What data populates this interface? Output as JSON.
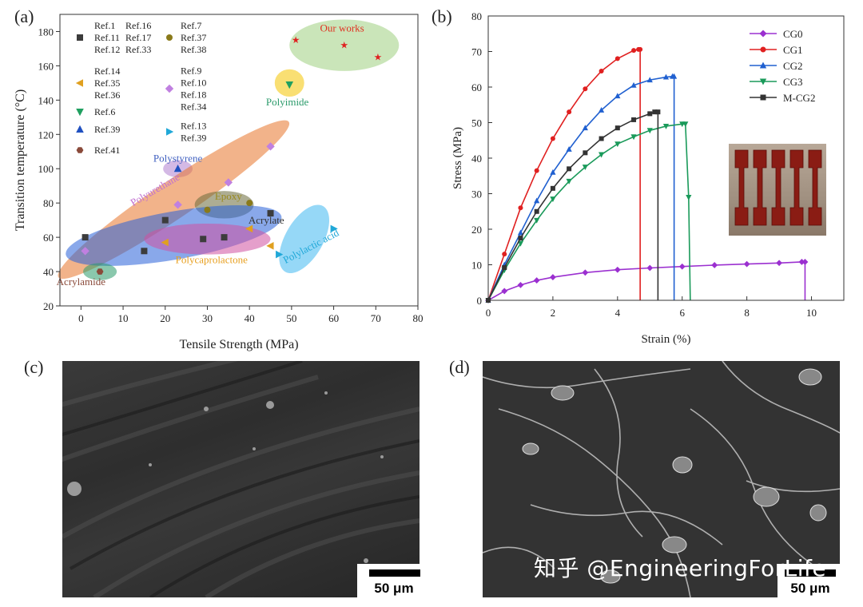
{
  "panels": {
    "a": "(a)",
    "b": "(b)",
    "c": "(c)",
    "d": "(d)"
  },
  "scale_bars": {
    "c": "50 μm",
    "d": "50 μm"
  },
  "watermark": "知乎 @EngineeringForLife",
  "chart_data": [
    {
      "type": "scatter",
      "xlabel": "Tensile Strength (MPa)",
      "ylabel": "Transition temperature (°C)",
      "xlim": [
        -5,
        80
      ],
      "ylim": [
        20,
        190
      ],
      "xticks": [
        0,
        10,
        20,
        30,
        40,
        50,
        60,
        70,
        80
      ],
      "yticks": [
        20,
        40,
        60,
        80,
        100,
        120,
        140,
        160,
        180
      ],
      "legend": [
        {
          "marker": "square",
          "color": "#3c3c3c",
          "lines": [
            "Ref.1",
            "Ref.11",
            "Ref.12"
          ],
          "lines2": [
            "Ref.16",
            "Ref.17",
            "Ref.33"
          ]
        },
        {
          "marker": "circle",
          "color": "#8a7a1a",
          "lines": [
            "Ref.7",
            "Ref.37",
            "Ref.38"
          ]
        },
        {
          "marker": "triangle-left",
          "color": "#e0a020",
          "lines": [
            "Ref.14",
            "Ref.35",
            "Ref.36"
          ]
        },
        {
          "marker": "diamond",
          "color": "#c080e0",
          "lines": [
            "Ref.9",
            "Ref.10",
            "Ref.18",
            "Ref.34"
          ]
        },
        {
          "marker": "triangle-down",
          "color": "#20a060",
          "lines": [
            "Ref.6"
          ]
        },
        {
          "marker": "triangle-right",
          "color": "#20a8d8",
          "lines": [
            "Ref.13",
            "Ref.39"
          ]
        },
        {
          "marker": "triangle-up",
          "color": "#2050c0",
          "lines": [
            "Ref.39"
          ]
        },
        {
          "marker": "hexagon",
          "color": "#8a4a3a",
          "lines": [
            "Ref.41"
          ]
        }
      ],
      "regions": [
        {
          "label": "Our works",
          "cx": 62.5,
          "cy": 172,
          "rx": 13,
          "ry": 15,
          "angle": 0,
          "fill": "#9fcf80",
          "label_color": "#e03020",
          "lx": 62,
          "ly": 180
        },
        {
          "label": "Polyimide",
          "cx": 49.5,
          "cy": 150,
          "rx": 3.5,
          "ry": 8,
          "angle": 0,
          "fill": "#f4c400",
          "label_color": "#2a9a6a",
          "lx": 49,
          "ly": 137
        },
        {
          "label": "Polystyrene",
          "cx": 23,
          "cy": 100,
          "rx": 3.5,
          "ry": 5,
          "angle": 0,
          "fill": "#b080d0",
          "label_color": "#4060c0",
          "lx": 23,
          "ly": 104
        },
        {
          "label": "Polyurethane",
          "cx": 22,
          "cy": 82,
          "rx": 33,
          "ry": 11,
          "angle": 34,
          "fill": "#e8742a",
          "label_color": "#c070d0",
          "lx": 18,
          "ly": 86
        },
        {
          "label": "Epoxy",
          "cx": 34,
          "cy": 79,
          "rx": 7,
          "ry": 8,
          "angle": 0,
          "fill": "#6a6a3a",
          "label_color": "#9a8a20",
          "lx": 35,
          "ly": 82
        },
        {
          "label": "Acrylate",
          "cx": 22,
          "cy": 61,
          "rx": 26,
          "ry": 14,
          "angle": 10,
          "fill": "#2860d8",
          "label_color": "#333333",
          "lx": 44,
          "ly": 68
        },
        {
          "label": "Polycaprolactone",
          "cx": 30,
          "cy": 59,
          "rx": 15,
          "ry": 9,
          "angle": 0,
          "fill": "#d050a0",
          "label_color": "#e8a020",
          "lx": 31,
          "ly": 45
        },
        {
          "label": "Polylactic acid",
          "cx": 53,
          "cy": 59,
          "rx": 9,
          "ry": 11,
          "angle": 60,
          "fill": "#40b8f0",
          "label_color": "#20a8d8",
          "lx": 55,
          "ly": 53
        },
        {
          "label": "Acrylamide",
          "cx": 4.5,
          "cy": 40,
          "rx": 4,
          "ry": 5,
          "angle": 0,
          "fill": "#2a9a6a",
          "label_color": "#8a4a3a",
          "lx": 0,
          "ly": 32
        }
      ],
      "points": [
        {
          "marker": "star",
          "color": "#e02020",
          "x": 51,
          "y": 175
        },
        {
          "marker": "star",
          "color": "#e02020",
          "x": 62.5,
          "y": 172
        },
        {
          "marker": "star",
          "color": "#e02020",
          "x": 70.5,
          "y": 165
        },
        {
          "marker": "triangle-down",
          "color": "#20a060",
          "x": 49.5,
          "y": 149
        },
        {
          "marker": "triangle-up",
          "color": "#2050c0",
          "x": 23,
          "y": 100
        },
        {
          "marker": "diamond",
          "color": "#c080e0",
          "x": 45,
          "y": 113
        },
        {
          "marker": "diamond",
          "color": "#c080e0",
          "x": 35,
          "y": 92
        },
        {
          "marker": "diamond",
          "color": "#c080e0",
          "x": 23,
          "y": 79
        },
        {
          "marker": "diamond",
          "color": "#c080e0",
          "x": 1,
          "y": 52
        },
        {
          "marker": "circle",
          "color": "#8a7a1a",
          "x": 30,
          "y": 76
        },
        {
          "marker": "circle",
          "color": "#8a7a1a",
          "x": 40,
          "y": 80
        },
        {
          "marker": "square",
          "color": "#3c3c3c",
          "x": 45,
          "y": 74
        },
        {
          "marker": "square",
          "color": "#3c3c3c",
          "x": 20,
          "y": 70
        },
        {
          "marker": "square",
          "color": "#3c3c3c",
          "x": 1,
          "y": 60
        },
        {
          "marker": "square",
          "color": "#3c3c3c",
          "x": 29,
          "y": 59
        },
        {
          "marker": "square",
          "color": "#3c3c3c",
          "x": 34,
          "y": 60
        },
        {
          "marker": "square",
          "color": "#3c3c3c",
          "x": 15,
          "y": 52
        },
        {
          "marker": "triangle-left",
          "color": "#e0a020",
          "x": 20,
          "y": 57
        },
        {
          "marker": "triangle-left",
          "color": "#e0a020",
          "x": 40,
          "y": 65
        },
        {
          "marker": "triangle-left",
          "color": "#e0a020",
          "x": 45,
          "y": 55
        },
        {
          "marker": "triangle-right",
          "color": "#20a8d8",
          "x": 47,
          "y": 50
        },
        {
          "marker": "triangle-right",
          "color": "#20a8d8",
          "x": 60,
          "y": 65
        },
        {
          "marker": "hexagon",
          "color": "#8a4a3a",
          "x": 4.5,
          "y": 40
        }
      ]
    },
    {
      "type": "line",
      "xlabel": "Strain (%)",
      "ylabel": "Stress (MPa)",
      "xlim": [
        0,
        11
      ],
      "ylim": [
        0,
        80
      ],
      "xticks": [
        0,
        2,
        4,
        6,
        8,
        10
      ],
      "yticks": [
        0,
        10,
        20,
        30,
        40,
        50,
        60,
        70,
        80
      ],
      "legend_position": "top-right",
      "series": [
        {
          "name": "CG0",
          "color": "#9b30d0",
          "marker": "diamond",
          "x": [
            0,
            0.5,
            1,
            1.5,
            2,
            3,
            4,
            5,
            6,
            7,
            8,
            9,
            9.7,
            9.8,
            9.8
          ],
          "y": [
            0,
            2.6,
            4.3,
            5.6,
            6.5,
            7.8,
            8.6,
            9.1,
            9.5,
            9.9,
            10.2,
            10.5,
            10.8,
            10.8,
            0
          ]
        },
        {
          "name": "CG1",
          "color": "#e02020",
          "marker": "circle",
          "x": [
            0,
            0.5,
            1,
            1.5,
            2,
            2.5,
            3,
            3.5,
            4,
            4.5,
            4.65,
            4.7,
            4.7
          ],
          "y": [
            0,
            13,
            26,
            36.5,
            45.5,
            53,
            59.5,
            64.5,
            68,
            70.3,
            70.6,
            70.6,
            0
          ]
        },
        {
          "name": "CG2",
          "color": "#2060d0",
          "marker": "triangle-up",
          "x": [
            0,
            0.5,
            1,
            1.5,
            2,
            2.5,
            3,
            3.5,
            4,
            4.5,
            5,
            5.5,
            5.7,
            5.75,
            5.75
          ],
          "y": [
            0,
            10,
            19,
            28,
            36,
            42.5,
            48.5,
            53.5,
            57.5,
            60.5,
            62,
            62.8,
            63,
            63,
            0
          ]
        },
        {
          "name": "CG3",
          "color": "#1a9a5a",
          "marker": "triangle-down",
          "x": [
            0,
            0.5,
            1,
            1.5,
            2,
            2.5,
            3,
            3.5,
            4,
            4.5,
            5,
            5.5,
            6,
            6.1,
            6.2,
            6.25
          ],
          "y": [
            0,
            8.5,
            16,
            22.5,
            28.5,
            33.5,
            37.5,
            41,
            44,
            46,
            47.8,
            49,
            49.6,
            49.6,
            29,
            0
          ]
        },
        {
          "name": "M-CG2",
          "color": "#333333",
          "marker": "square",
          "x": [
            0,
            0.5,
            1,
            1.5,
            2,
            2.5,
            3,
            3.5,
            4,
            4.5,
            5,
            5.15,
            5.25,
            5.25
          ],
          "y": [
            0,
            9.2,
            17.5,
            25,
            31.5,
            37,
            41.5,
            45.5,
            48.5,
            50.8,
            52.5,
            53,
            53,
            0
          ]
        }
      ]
    }
  ]
}
